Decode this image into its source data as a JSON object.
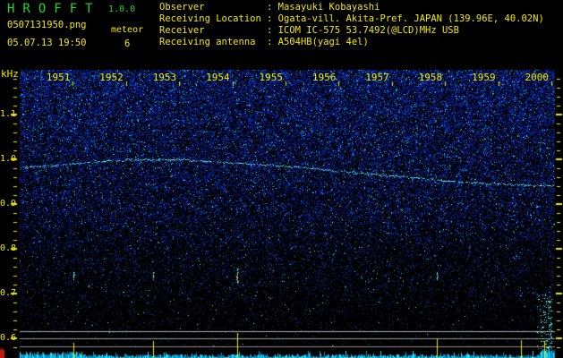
{
  "header": {
    "app_title": "HROFFT",
    "app_version": "1.0.0",
    "filename": "0507131950.png",
    "mode_label": "meteor",
    "datetime": "05.07.13 19:50",
    "meteor_count": "6",
    "station_info": [
      {
        "label": "Observer",
        "value": "Masayuki Kobayashi"
      },
      {
        "label": "Receiving Location",
        "value": "Ogata-vill. Akita-Pref. JAPAN (139.96E, 40.02N)"
      },
      {
        "label": "Receiver",
        "value": "ICOM IC-575 53.7492(@LCD)MHz USB"
      },
      {
        "label": "Receiving antenna",
        "value": "A504HB(yagi 4el)"
      }
    ]
  },
  "colors": {
    "background": "#000000",
    "title_green": "#23d62e",
    "label_yellow": "#f2ea00",
    "grid_gray": "#a8a8a8",
    "noise_blue": "#0022cc",
    "carrier_cyan": "#46d2eb",
    "echo_green": "#50f096",
    "echo_core_orange": "#ff7828",
    "marker_red": "#be1910",
    "strip_cyan": "#1edcfa"
  },
  "chart_data": {
    "type": "heatmap",
    "ylabel": "kHz",
    "y_range_khz": [
      0.6,
      1.2
    ],
    "x_range_minutes": [
      0,
      10
    ],
    "grid": false,
    "y_ticks": [
      {
        "label": "1.1",
        "khz": 1.1
      },
      {
        "label": "1.0",
        "khz": 1.0
      },
      {
        "label": "0.9",
        "khz": 0.9
      },
      {
        "label": "0.8",
        "khz": 0.8
      },
      {
        "label": "0.7",
        "khz": 0.7
      },
      {
        "label": "0.6",
        "khz": 0.6
      }
    ],
    "x_ticks": [
      {
        "label": "1951",
        "minute": 1
      },
      {
        "label": "1952",
        "minute": 2
      },
      {
        "label": "1953",
        "minute": 3
      },
      {
        "label": "1954",
        "minute": 4
      },
      {
        "label": "1955",
        "minute": 5
      },
      {
        "label": "1956",
        "minute": 6
      },
      {
        "label": "1957",
        "minute": 7
      },
      {
        "label": "1958",
        "minute": 8
      },
      {
        "label": "1959",
        "minute": 9
      },
      {
        "label": "2000",
        "minute": 10
      }
    ],
    "carrier_trace": {
      "points": [
        [
          0.005,
          0.982
        ],
        [
          0.08,
          0.988
        ],
        [
          0.147,
          0.996
        ],
        [
          0.214,
          1.0
        ],
        [
          0.298,
          1.0
        ],
        [
          0.381,
          0.994
        ],
        [
          0.465,
          0.988
        ],
        [
          0.549,
          0.98
        ],
        [
          0.632,
          0.97
        ],
        [
          0.716,
          0.962
        ],
        [
          0.799,
          0.952
        ],
        [
          0.883,
          0.946
        ],
        [
          0.967,
          0.942
        ],
        [
          0.997,
          0.942
        ]
      ]
    },
    "meteor_events": [
      {
        "t_frac": 0.1,
        "khz": 0.74,
        "kind": "ping"
      },
      {
        "t_frac": 0.249,
        "khz": 0.74,
        "kind": "ping"
      },
      {
        "t_frac": 0.406,
        "khz": 0.74,
        "kind": "ping-strong"
      },
      {
        "t_frac": 0.779,
        "khz": 0.74,
        "kind": "ping"
      },
      {
        "t_frac": 0.936,
        "khz": 0.7,
        "kind": "faint"
      },
      {
        "t_frac": 0.98,
        "khz": 0.62,
        "kind": "long-echo"
      }
    ],
    "meteor_count": 6,
    "level_lines_khz": [
      0.617,
      0.6,
      0.583
    ]
  }
}
